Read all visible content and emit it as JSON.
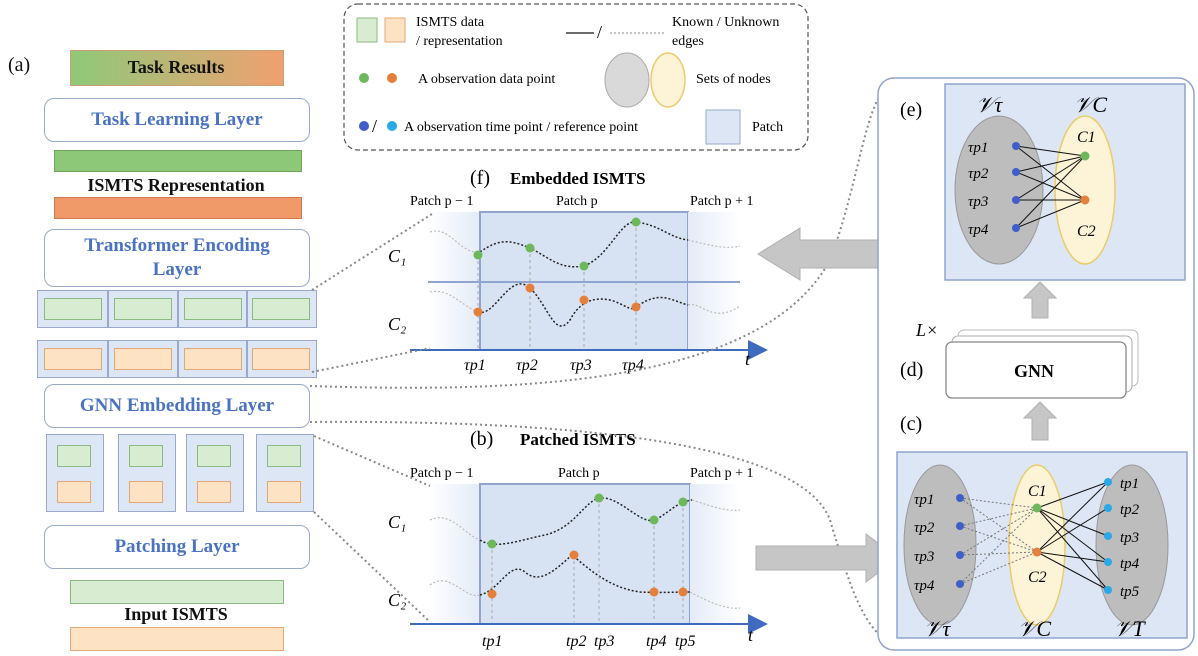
{
  "left": {
    "panel_label": "(a)",
    "task_results": "Task Results",
    "task_learning_layer": "Task Learning Layer",
    "ismts_representation": "ISMTS Representation",
    "transformer_layer": "Transformer Encoding Layer",
    "gnn_embedding_layer": "GNN Embedding Layer",
    "patching_layer": "Patching Layer",
    "input_ismts": "Input ISMTS"
  },
  "legend": {
    "ismts_data_1": "ISMTS data",
    "ismts_data_2": "/ representation",
    "edges_1": "Known / Unknown",
    "edges_2": "edges",
    "obs_data_point": "A observation data point",
    "sets_of_nodes": "Sets of nodes",
    "time_point": "A observation time point / reference point",
    "patch": "Patch",
    "slash": "/"
  },
  "panel_f": {
    "label": "(f)",
    "title": "Embedded ISMTS",
    "patch_prev": "Patch p − 1",
    "patch_cur": "Patch p",
    "patch_next": "Patch p + 1",
    "c1": "C₁",
    "c2": "C₂",
    "ticks": [
      "τp1",
      "τp2",
      "τp3",
      "τp4"
    ],
    "t": "t"
  },
  "panel_b": {
    "label": "(b)",
    "title": "Patched ISMTS",
    "patch_prev": "Patch p − 1",
    "patch_cur": "Patch p",
    "patch_next": "Patch p + 1",
    "c1": "C₁",
    "c2": "C₂",
    "ticks": [
      "tp1",
      "tp2",
      "tp3",
      "tp4",
      "tp5"
    ],
    "t": "t"
  },
  "right": {
    "label_e": "(e)",
    "label_d": "(d)",
    "label_c": "(c)",
    "v_tau": "𝒱τ",
    "v_c": "𝒱C",
    "v_t": "𝒱T",
    "l_times": "L×",
    "gnn": "GNN",
    "tau_nodes": [
      "τp1",
      "τp2",
      "τp3",
      "τp4"
    ],
    "c_nodes": [
      "C1",
      "C2"
    ],
    "t_nodes": [
      "tp1",
      "tp2",
      "tp3",
      "tp4",
      "tp5"
    ]
  },
  "colors": {
    "green": "#6cb85a",
    "orange": "#e57f3c",
    "blue_dot": "#3f5ec7",
    "cyan_dot": "#2aa8e8",
    "layer_text": "#4a72c2",
    "patch_fill": "#dce6f5"
  }
}
